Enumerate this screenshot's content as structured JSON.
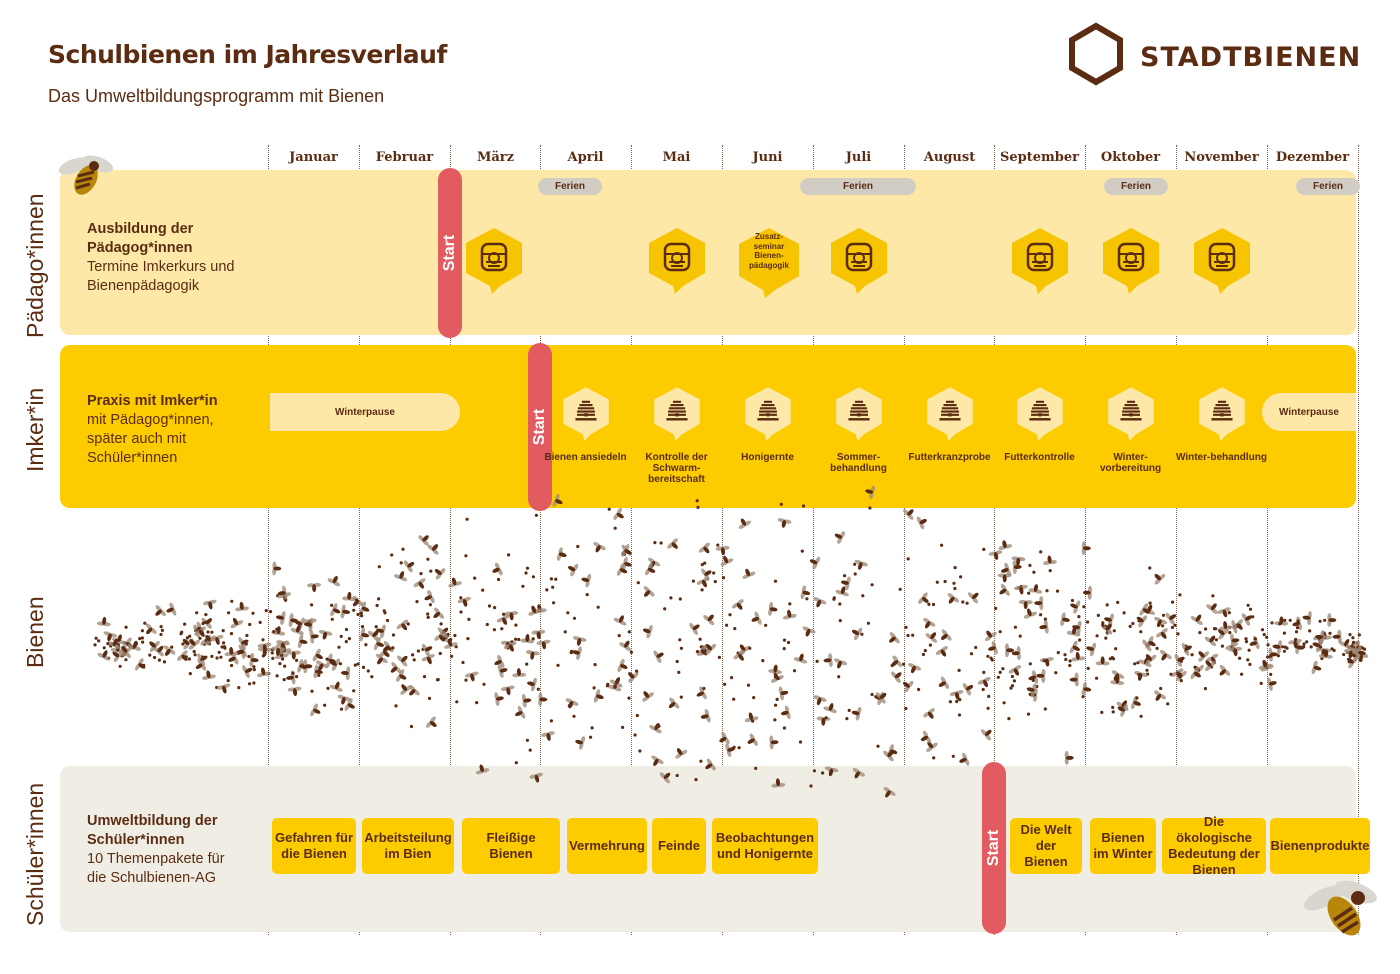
{
  "header": {
    "title": "Schulbienen im Jahresverlauf",
    "subtitle": "Das Umweltbildungsprogramm mit Bienen",
    "brand": "STADTBIENEN"
  },
  "months": [
    "Januar",
    "Februar",
    "März",
    "April",
    "Mai",
    "Juni",
    "Juli",
    "August",
    "September",
    "Oktober",
    "November",
    "Dezember"
  ],
  "rows": {
    "paedagog": {
      "label": "Pädago*innen",
      "title": "Ausbildung der Pädagog*innen",
      "text": "Termine Imkerkurs und Bienenpädagogik"
    },
    "imker": {
      "label": "Imker*in",
      "title": "Praxis mit Imker*in",
      "text": "mit Pädagog*innen, später auch mit Schüler*innen"
    },
    "bienen": {
      "label": "Bienen"
    },
    "schueler": {
      "label": "Schüler*innen",
      "title": "Umweltbildung der Schüler*innen",
      "text": "10 Themenpakete für die Schulbienen-AG"
    }
  },
  "ferien_label": "Ferien",
  "start_label": "Start",
  "winterpause_label": "Winterpause",
  "zusatzseminar": "Zusatz-seminar Bienen-pädagogik",
  "imker_tasks": [
    "Bienen ansiedeln",
    "Kontrolle der Schwarm-bereitschaft",
    "Honigernte",
    "Sommer-behandlung",
    "Futterkranzprobe",
    "Futterkontrolle",
    "Winter-vorbereitung",
    "Winter-behandlung"
  ],
  "topics": [
    "Gefahren für die Bienen",
    "Arbeitsteilung im Bien",
    "Fleißige Bienen",
    "Vermehrung",
    "Feinde",
    "Beobachtungen und Honigernte",
    "Die Welt der Bienen",
    "Bienen im Winter",
    "Die ökologische Bedeutung der Bienen",
    "Bienenprodukte"
  ],
  "colors": {
    "brown": "#5b2c12",
    "light_yellow": "#fde8a8",
    "yellow": "#fccc00",
    "gold": "#f6c400",
    "red": "#e25b60",
    "beige": "#f0eee4",
    "grey": "#d1cdc5"
  }
}
